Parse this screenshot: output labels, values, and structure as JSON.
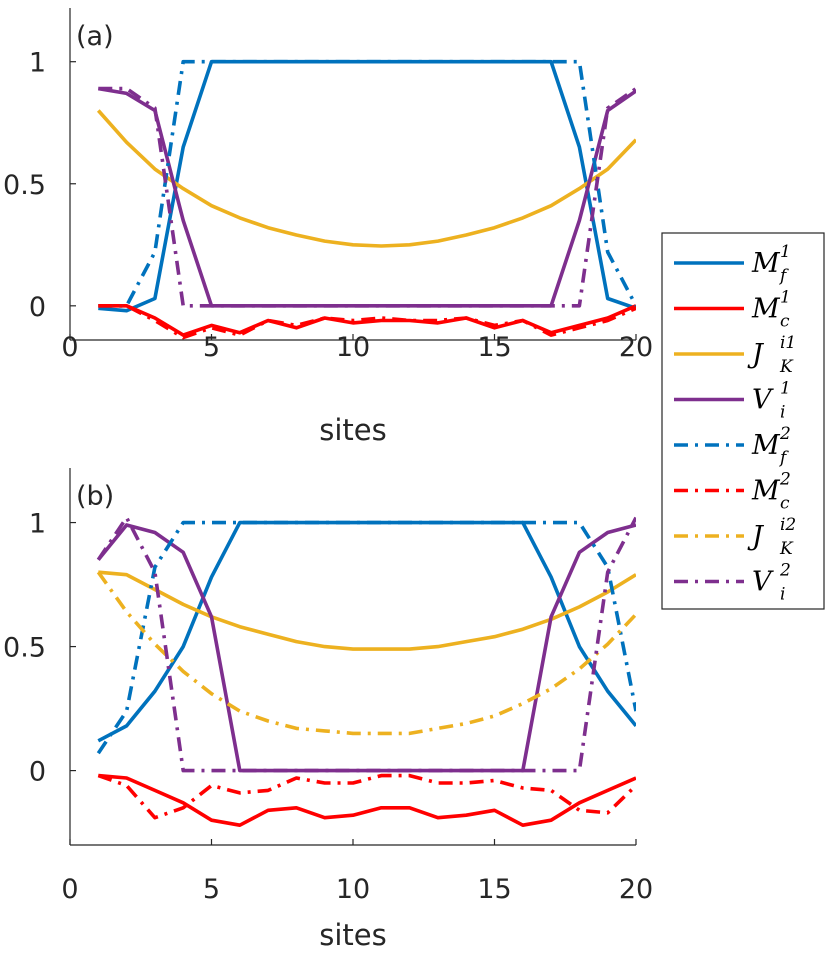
{
  "chart_data": [
    {
      "type": "line",
      "panel_label": "(a)",
      "xlabel": "sites",
      "ylabel": "",
      "xlim": [
        0,
        20
      ],
      "ylim": [
        -0.14,
        1.22
      ],
      "xticks": [
        "0",
        "5",
        "10",
        "15",
        "20"
      ],
      "yticks": [
        "0",
        "0.5",
        "1"
      ],
      "x": [
        1,
        2,
        3,
        4,
        5,
        6,
        7,
        8,
        9,
        10,
        11,
        12,
        13,
        14,
        15,
        16,
        17,
        18,
        19,
        20
      ],
      "series": [
        {
          "name": "M_f^1",
          "style": "solid",
          "color": "#0072BD",
          "values": [
            -0.01,
            -0.02,
            0.03,
            0.65,
            1,
            1,
            1,
            1,
            1,
            1,
            1,
            1,
            1,
            1,
            1,
            1,
            1,
            0.65,
            0.03,
            -0.01
          ]
        },
        {
          "name": "M_c^1",
          "style": "solid",
          "color": "#FF0000",
          "values": [
            0.0,
            0.0,
            -0.05,
            -0.12,
            -0.08,
            -0.11,
            -0.06,
            -0.09,
            -0.05,
            -0.07,
            -0.06,
            -0.06,
            -0.07,
            -0.05,
            -0.09,
            -0.06,
            -0.11,
            -0.08,
            -0.05,
            0.0
          ]
        },
        {
          "name": "J_K^{i1}",
          "style": "solid",
          "color": "#EDB120",
          "values": [
            0.8,
            0.67,
            0.56,
            0.48,
            0.41,
            0.36,
            0.32,
            0.29,
            0.265,
            0.25,
            0.245,
            0.25,
            0.265,
            0.29,
            0.32,
            0.36,
            0.41,
            0.48,
            0.56,
            0.68
          ]
        },
        {
          "name": "V_i^1",
          "style": "solid",
          "color": "#7E2F8E",
          "values": [
            0.89,
            0.87,
            0.8,
            0.35,
            0,
            0,
            0,
            0,
            0,
            0,
            0,
            0,
            0,
            0,
            0,
            0,
            0,
            0.35,
            0.8,
            0.88
          ]
        },
        {
          "name": "M_f^2",
          "style": "dashdot",
          "color": "#0072BD",
          "values": [
            0.0,
            0.0,
            0.22,
            1,
            1,
            1,
            1,
            1,
            1,
            1,
            1,
            1,
            1,
            1,
            1,
            1,
            1,
            1,
            0.22,
            0.0
          ]
        },
        {
          "name": "M_c^2",
          "style": "dashdot",
          "color": "#FF0000",
          "values": [
            0.0,
            0.0,
            -0.06,
            -0.13,
            -0.09,
            -0.12,
            -0.06,
            -0.08,
            -0.05,
            -0.06,
            -0.05,
            -0.06,
            -0.06,
            -0.05,
            -0.08,
            -0.06,
            -0.12,
            -0.09,
            -0.06,
            -0.01
          ]
        },
        {
          "name": "V_i^2",
          "style": "dashdot",
          "color": "#7E2F8E",
          "values": [
            0.89,
            0.89,
            0.81,
            0,
            0,
            0,
            0,
            0,
            0,
            0,
            0,
            0,
            0,
            0,
            0,
            0,
            0,
            0,
            0.81,
            0.89
          ]
        }
      ]
    },
    {
      "type": "line",
      "panel_label": "(b)",
      "xlabel": "sites",
      "ylabel": "",
      "xlim": [
        0,
        20
      ],
      "ylim": [
        -0.3,
        1.22
      ],
      "xticks": [
        "0",
        "5",
        "10",
        "15",
        "20"
      ],
      "yticks": [
        "0",
        "0.5",
        "1"
      ],
      "x": [
        1,
        2,
        3,
        4,
        5,
        6,
        7,
        8,
        9,
        10,
        11,
        12,
        13,
        14,
        15,
        16,
        17,
        18,
        19,
        20
      ],
      "series": [
        {
          "name": "M_f^1",
          "style": "solid",
          "color": "#0072BD",
          "values": [
            0.12,
            0.18,
            0.32,
            0.5,
            0.78,
            1,
            1,
            1,
            1,
            1,
            1,
            1,
            1,
            1,
            1,
            1,
            0.78,
            0.5,
            0.32,
            0.18
          ]
        },
        {
          "name": "M_c^1",
          "style": "solid",
          "color": "#FF0000",
          "values": [
            -0.02,
            -0.03,
            -0.08,
            -0.13,
            -0.2,
            -0.22,
            -0.16,
            -0.15,
            -0.19,
            -0.18,
            -0.15,
            -0.15,
            -0.19,
            -0.18,
            -0.16,
            -0.22,
            -0.2,
            -0.13,
            -0.08,
            -0.03
          ]
        },
        {
          "name": "J_K^{i1}",
          "style": "solid",
          "color": "#EDB120",
          "values": [
            0.8,
            0.79,
            0.73,
            0.67,
            0.62,
            0.58,
            0.55,
            0.52,
            0.5,
            0.49,
            0.49,
            0.49,
            0.5,
            0.52,
            0.54,
            0.57,
            0.61,
            0.66,
            0.72,
            0.79
          ]
        },
        {
          "name": "V_i^1",
          "style": "solid",
          "color": "#7E2F8E",
          "values": [
            0.85,
            0.99,
            0.96,
            0.88,
            0.62,
            0,
            0,
            0,
            0,
            0,
            0,
            0,
            0,
            0,
            0,
            0,
            0.62,
            0.88,
            0.96,
            0.99
          ]
        },
        {
          "name": "M_f^2",
          "style": "dashdot",
          "color": "#0072BD",
          "values": [
            0.07,
            0.24,
            0.82,
            1,
            1,
            1,
            1,
            1,
            1,
            1,
            1,
            1,
            1,
            1,
            1,
            1,
            1,
            1,
            0.82,
            0.24
          ]
        },
        {
          "name": "M_c^2",
          "style": "dashdot",
          "color": "#FF0000",
          "values": [
            -0.02,
            -0.06,
            -0.19,
            -0.15,
            -0.06,
            -0.09,
            -0.08,
            -0.03,
            -0.05,
            -0.05,
            -0.02,
            -0.02,
            -0.05,
            -0.05,
            -0.04,
            -0.07,
            -0.08,
            -0.16,
            -0.17,
            -0.06
          ]
        },
        {
          "name": "J_K^{i2}",
          "style": "dashdot",
          "color": "#EDB120",
          "values": [
            0.8,
            0.64,
            0.51,
            0.4,
            0.31,
            0.24,
            0.2,
            0.17,
            0.16,
            0.15,
            0.15,
            0.15,
            0.17,
            0.19,
            0.22,
            0.27,
            0.33,
            0.41,
            0.51,
            0.63
          ]
        },
        {
          "name": "V_i^2",
          "style": "dashdot",
          "color": "#7E2F8E",
          "values": [
            0.85,
            1.02,
            0.8,
            0,
            0,
            0,
            0,
            0,
            0,
            0,
            0,
            0,
            0,
            0,
            0,
            0,
            0,
            0,
            0.8,
            1.02
          ]
        }
      ]
    }
  ],
  "legend": {
    "placement": "right",
    "entries": [
      {
        "symbol": "M",
        "sub": "f",
        "sup": "1",
        "style": "solid",
        "color": "#0072BD"
      },
      {
        "symbol": "M",
        "sub": "c",
        "sup": "1",
        "style": "solid",
        "color": "#FF0000"
      },
      {
        "symbol": "J",
        "sub": "K",
        "sup": "i1",
        "style": "solid",
        "color": "#EDB120"
      },
      {
        "symbol": "V",
        "sub": "i",
        "sup": "1",
        "style": "solid",
        "color": "#7E2F8E"
      },
      {
        "symbol": "M",
        "sub": "f",
        "sup": "2",
        "style": "dashdot",
        "color": "#0072BD"
      },
      {
        "symbol": "M",
        "sub": "c",
        "sup": "2",
        "style": "dashdot",
        "color": "#FF0000"
      },
      {
        "symbol": "J",
        "sub": "K",
        "sup": "i2",
        "style": "dashdot",
        "color": "#EDB120"
      },
      {
        "symbol": "V",
        "sub": "i",
        "sup": "2",
        "style": "dashdot",
        "color": "#7E2F8E"
      }
    ]
  }
}
